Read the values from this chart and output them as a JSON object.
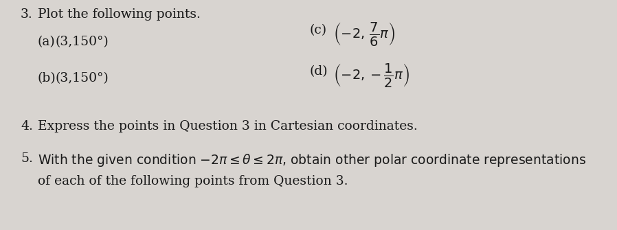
{
  "background_color": "#d8d4d0",
  "text_color": "#1a1a1a",
  "q3_number": "3.",
  "q3_title": "Plot the following points.",
  "q3_a_label": "(a)",
  "q3_a_text": "(3,150°)",
  "q3_b_label": "(b)",
  "q3_b_text": "(3,150°)",
  "q3_c_label": "(c)",
  "q3_d_label": "(d)",
  "q4_number": "4.",
  "q4_text": "Express the points in Question 3 in Cartesian coordinates.",
  "q5_number": "5.",
  "q5_text_line1": "With the given condition $-2\\pi \\leq \\theta \\leq 2\\pi$, obtain other polar coordinate representations",
  "q5_text_line2": "of each of the following points from Question 3.",
  "font_size": 13.5,
  "font_family": "DejaVu Serif"
}
